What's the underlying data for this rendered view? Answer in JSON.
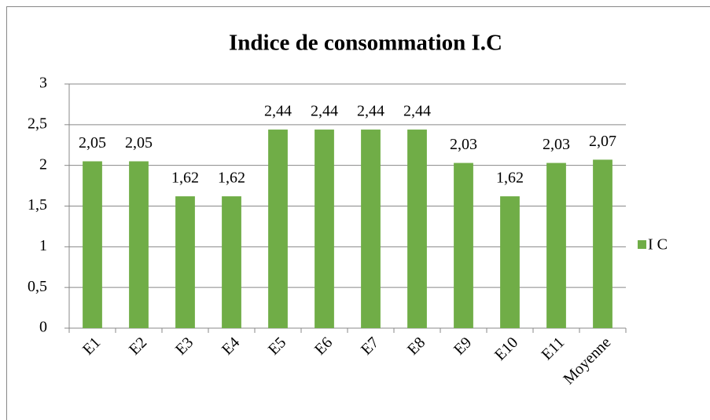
{
  "chart_data": {
    "type": "bar",
    "title": "Indice de consommation I.C",
    "categories": [
      "E1",
      "E2",
      "E3",
      "E4",
      "E5",
      "E6",
      "E7",
      "E8",
      "E9",
      "E10",
      "E11",
      "Moyenne"
    ],
    "series": [
      {
        "name": "I C",
        "color": "#70ad47",
        "values": [
          2.05,
          2.05,
          1.62,
          1.62,
          2.44,
          2.44,
          2.44,
          2.44,
          2.03,
          1.62,
          2.03,
          2.07
        ],
        "value_labels": [
          "2,05",
          "2,05",
          "1,62",
          "1,62",
          "2,44",
          "2,44",
          "2,44",
          "2,44",
          "2,03",
          "1,62",
          "2,03",
          "2,07"
        ]
      }
    ],
    "ylim": [
      0,
      3
    ],
    "yticks": [
      0,
      {
        "value": 0.5,
        "label": "0,5"
      },
      1,
      {
        "value": 1.5,
        "label": "1,5"
      },
      2,
      {
        "value": 2.5,
        "label": "2,5"
      },
      3
    ],
    "grid": true,
    "legend": "right"
  }
}
